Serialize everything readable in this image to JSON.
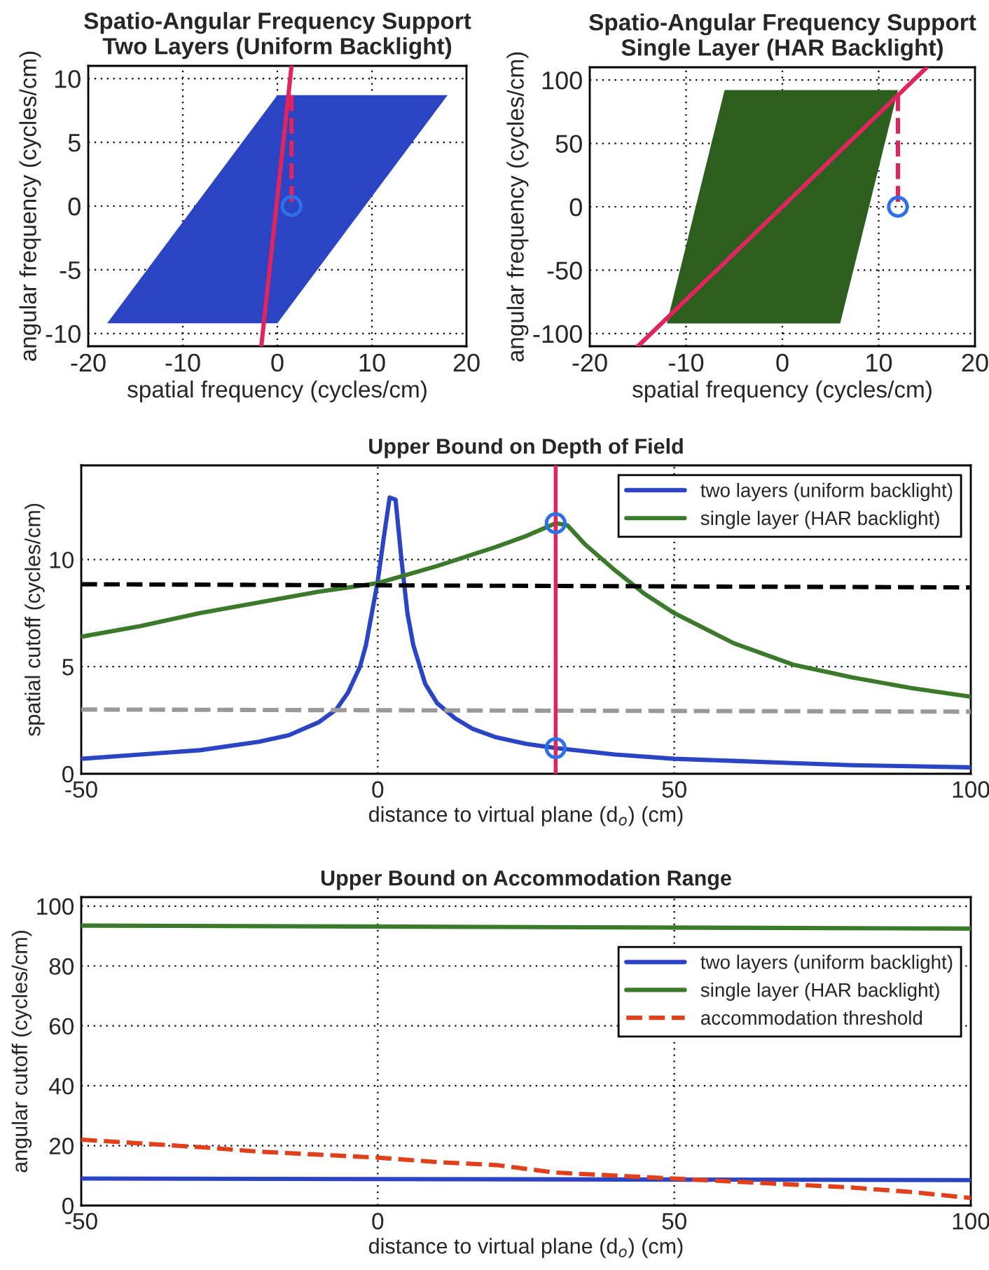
{
  "chart_data": [
    {
      "type": "area",
      "title": "Spatio-Angular Frequency Support\nTwo Layers (Uniform Backlight)",
      "xlabel": "spatial frequency (cycles/cm)",
      "ylabel": "angular frequency (cycles/cm)",
      "xlim": [
        -20,
        20
      ],
      "ylim": [
        -11,
        11
      ],
      "xticks": [
        -20,
        -10,
        0,
        10,
        20
      ],
      "yticks": [
        -10,
        -5,
        0,
        5,
        10
      ],
      "grid": true,
      "series": [
        {
          "color": "#2a44c4",
          "x": [
            -18,
            0,
            18,
            0
          ],
          "values": [
            -9.2,
            8.7,
            8.7,
            -9.2
          ]
        },
        {
          "type": "line",
          "color": "#e0245e",
          "x": [
            -1.7,
            1.5
          ],
          "values": [
            -11,
            11
          ]
        },
        {
          "type": "line",
          "color": "#e0245e",
          "line_style": "dashed",
          "x": [
            1.5,
            1.5
          ],
          "values": [
            8.7,
            0
          ]
        },
        {
          "type": "scatter",
          "color": "#2f6fe8",
          "marker": "circle",
          "x": [
            1.5
          ],
          "values": [
            0
          ]
        }
      ]
    },
    {
      "type": "area",
      "title": "Spatio-Angular Frequency Support\nSingle Layer (HAR Backlight)",
      "xlabel": "spatial frequency (cycles/cm)",
      "ylabel": "angular frequency (cycles/cm)",
      "xlim": [
        -20,
        20
      ],
      "ylim": [
        -110,
        110
      ],
      "xticks": [
        -20,
        -10,
        0,
        10,
        20
      ],
      "yticks": [
        -100,
        -50,
        0,
        50,
        100
      ],
      "grid": true,
      "series": [
        {
          "color": "#2c5e1e",
          "x": [
            -12,
            6,
            12,
            -6
          ],
          "values": [
            -92,
            -92,
            92,
            92
          ]
        },
        {
          "type": "line",
          "color": "#e0245e",
          "x": [
            -15,
            15
          ],
          "values": [
            -110,
            110
          ]
        },
        {
          "type": "line",
          "color": "#e0245e",
          "line_style": "dashed",
          "x": [
            12,
            12
          ],
          "values": [
            88,
            0
          ]
        },
        {
          "type": "scatter",
          "color": "#2f6fe8",
          "marker": "circle",
          "x": [
            12
          ],
          "values": [
            0
          ]
        }
      ]
    },
    {
      "type": "line",
      "title": "Upper Bound on Depth of Field",
      "xlabel": "distance to virtual plane (d$_{o}$) (cm)",
      "ylabel": "spatial cutoff (cycles/cm)",
      "xlim": [
        -50,
        100
      ],
      "ylim": [
        0,
        14.4
      ],
      "xticks": [
        -50,
        0,
        50,
        100
      ],
      "yticks": [
        0,
        5,
        10
      ],
      "grid": true,
      "legend": "top right",
      "series": [
        {
          "name": "two layers (uniform backlight)",
          "color": "#2a44c4",
          "x": [
            -50,
            -40,
            -30,
            -20,
            -15,
            -10,
            -7,
            -5,
            -3,
            -2,
            -1,
            0,
            1,
            2,
            3,
            4,
            5,
            6,
            8,
            10,
            13,
            16,
            20,
            25,
            30,
            40,
            50,
            60,
            70,
            80,
            90,
            100
          ],
          "values": [
            0.7,
            0.9,
            1.1,
            1.5,
            1.8,
            2.4,
            3.0,
            3.8,
            5,
            6,
            7.5,
            9,
            11,
            12.9,
            12.8,
            10,
            7.5,
            6,
            4.2,
            3.3,
            2.6,
            2.1,
            1.7,
            1.4,
            1.2,
            0.9,
            0.7,
            0.6,
            0.5,
            0.4,
            0.35,
            0.3
          ]
        },
        {
          "name": "single layer (HAR backlight)",
          "color": "#3a7a2a",
          "x": [
            -50,
            -40,
            -30,
            -20,
            -10,
            0,
            10,
            20,
            25,
            30,
            32,
            35,
            40,
            45,
            50,
            60,
            70,
            80,
            90,
            100
          ],
          "values": [
            6.4,
            6.9,
            7.5,
            8.0,
            8.5,
            8.9,
            9.7,
            10.6,
            11.1,
            11.7,
            11.6,
            10.7,
            9.5,
            8.4,
            7.5,
            6.1,
            5.1,
            4.5,
            4.0,
            3.6
          ]
        },
        {
          "type": "line",
          "color": "#000000",
          "line_style": "dashed",
          "x": [
            -50,
            100
          ],
          "values": [
            8.85,
            8.7
          ]
        },
        {
          "type": "line",
          "color": "#999999",
          "line_style": "dashed",
          "x": [
            -50,
            100
          ],
          "values": [
            3.0,
            2.9
          ]
        },
        {
          "type": "scatter",
          "color": "#2f6fe8",
          "marker": "circle",
          "x": [
            30,
            30
          ],
          "values": [
            11.7,
            1.2
          ]
        }
      ],
      "ref_lines": [
        {
          "axis": "x",
          "value": 30,
          "color": "#e0245e"
        }
      ]
    },
    {
      "type": "line",
      "title": "Upper Bound on Accommodation Range",
      "xlabel": "distance to virtual plane (d$_{o}$) (cm)",
      "ylabel": "angular cutoff (cycles/cm)",
      "xlim": [
        -50,
        100
      ],
      "ylim": [
        0,
        103
      ],
      "xticks": [
        -50,
        0,
        50,
        100
      ],
      "yticks": [
        0,
        20,
        40,
        60,
        80,
        100
      ],
      "grid": true,
      "legend": "top right",
      "series": [
        {
          "name": "two layers (uniform backlight)",
          "color": "#2a44c4",
          "x": [
            -50,
            100
          ],
          "values": [
            9,
            8.5
          ]
        },
        {
          "name": "single layer (HAR backlight)",
          "color": "#3a7a2a",
          "x": [
            -50,
            100
          ],
          "values": [
            93.5,
            92.5
          ]
        },
        {
          "name": "accommodation threshold",
          "color": "#e2401a",
          "line_style": "dashed",
          "x": [
            -50,
            -30,
            -20,
            -10,
            0,
            10,
            20,
            30,
            40,
            50,
            60,
            70,
            80,
            90,
            100
          ],
          "values": [
            22,
            19.5,
            18,
            17,
            16,
            14.5,
            13.5,
            11,
            10,
            9,
            8,
            7,
            6,
            4.5,
            2.5
          ]
        }
      ]
    }
  ]
}
